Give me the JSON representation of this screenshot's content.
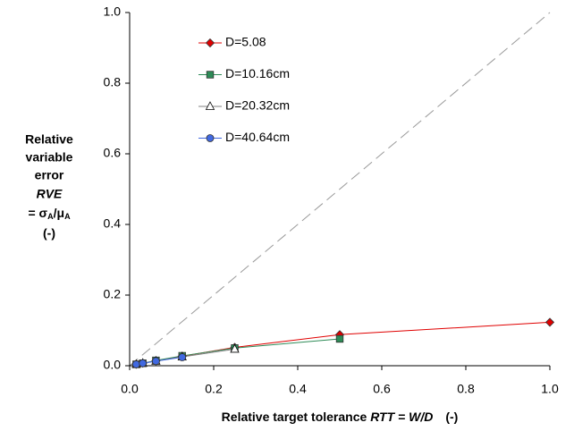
{
  "chart_data": {
    "type": "scatter-line",
    "xlabel": [
      "Relative target tolerance ",
      "RTT = W/D",
      "(-)"
    ],
    "ylabel": {
      "lines": [
        "Relative",
        "variable",
        "error",
        "RVE"
      ],
      "formula": [
        "= σ",
        "A",
        "/μ",
        "A"
      ],
      "unit": "(-)"
    },
    "xlim": [
      0,
      1
    ],
    "ylim": [
      0,
      1
    ],
    "xticks": [
      {
        "value": 0,
        "label": "0.0"
      },
      {
        "value": 0.2,
        "label": "0.2"
      },
      {
        "value": 0.4,
        "label": "0.4"
      },
      {
        "value": 0.6,
        "label": "0.6"
      },
      {
        "value": 0.8,
        "label": "0.8"
      },
      {
        "value": 1,
        "label": "1.0"
      }
    ],
    "yticks": [
      {
        "value": 0,
        "label": "0.0"
      },
      {
        "value": 0.2,
        "label": "0.2"
      },
      {
        "value": 0.4,
        "label": "0.4"
      },
      {
        "value": 0.6,
        "label": "0.6"
      },
      {
        "value": 0.8,
        "label": "0.8"
      },
      {
        "value": 1,
        "label": "1.0"
      }
    ],
    "series": [
      {
        "name": "D=5.08",
        "color": "#e00000",
        "fill": "#e00000",
        "marker": "diamond",
        "x": [
          0.0156,
          0.03125,
          0.0625,
          0.125,
          0.25,
          0.5,
          1
        ],
        "values": [
          0.004,
          0.007,
          0.014,
          0.027,
          0.052,
          0.088,
          0.123
        ]
      },
      {
        "name": "D=10.16cm",
        "color": "#2e8b57",
        "fill": "#2e8b57",
        "marker": "square",
        "x": [
          0.0156,
          0.03125,
          0.0625,
          0.125,
          0.25,
          0.5
        ],
        "values": [
          0.004,
          0.007,
          0.015,
          0.028,
          0.05,
          0.076
        ]
      },
      {
        "name": "D=20.32cm",
        "color": "#808080",
        "fill": "#ffffff",
        "marker": "triangle",
        "x": [
          0.0156,
          0.03125,
          0.0625,
          0.125,
          0.25
        ],
        "values": [
          0.004,
          0.007,
          0.013,
          0.025,
          0.047
        ]
      },
      {
        "name": "D=40.64cm",
        "color": "#4169e1",
        "fill": "#4169e1",
        "marker": "circle",
        "x": [
          0.0156,
          0.03125,
          0.0625,
          0.125
        ],
        "values": [
          0.004,
          0.007,
          0.013,
          0.024
        ]
      }
    ]
  }
}
